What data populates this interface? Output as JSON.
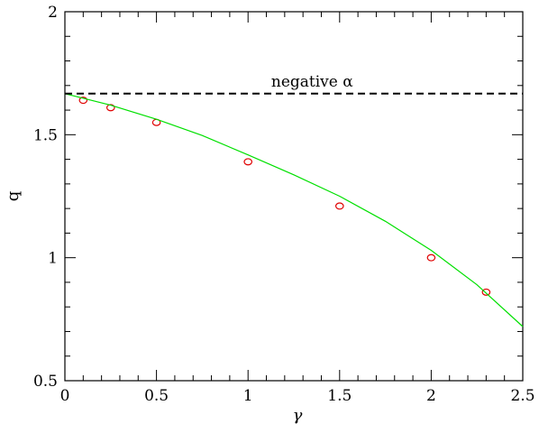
{
  "chart_data": {
    "type": "scatter",
    "xlabel": "γ",
    "ylabel": "q",
    "xlim": [
      0,
      2.5
    ],
    "ylim": [
      0.5,
      2
    ],
    "x_ticks": [
      0,
      0.5,
      1,
      1.5,
      2,
      2.5
    ],
    "x_tick_labels": [
      "0",
      "0.5",
      "1",
      "1.5",
      "2",
      "2.5"
    ],
    "y_ticks": [
      0.5,
      1,
      1.5,
      2
    ],
    "y_tick_labels": [
      "0.5",
      "1",
      "1.5",
      "2"
    ],
    "grid": false,
    "annotation": {
      "text": "negative α"
    },
    "series": [
      {
        "kind": "points",
        "marker": "open-circle",
        "color": "#e00000",
        "x": [
          0.1,
          0.25,
          0.5,
          1.0,
          1.5,
          2.0,
          2.3
        ],
        "y": [
          1.64,
          1.61,
          1.55,
          1.39,
          1.21,
          1.0,
          0.86
        ]
      },
      {
        "kind": "curve",
        "style": "solid",
        "color": "#00e000",
        "x": [
          0,
          0.25,
          0.5,
          0.75,
          1.0,
          1.25,
          1.5,
          1.75,
          2.0,
          2.25,
          2.5
        ],
        "y": [
          1.667,
          1.62,
          1.563,
          1.497,
          1.418,
          1.337,
          1.25,
          1.148,
          1.03,
          0.89,
          0.72
        ]
      },
      {
        "kind": "line",
        "style": "dashed",
        "color": "#000000",
        "x": [
          0,
          2.5
        ],
        "y": [
          1.667,
          1.667
        ]
      }
    ]
  }
}
